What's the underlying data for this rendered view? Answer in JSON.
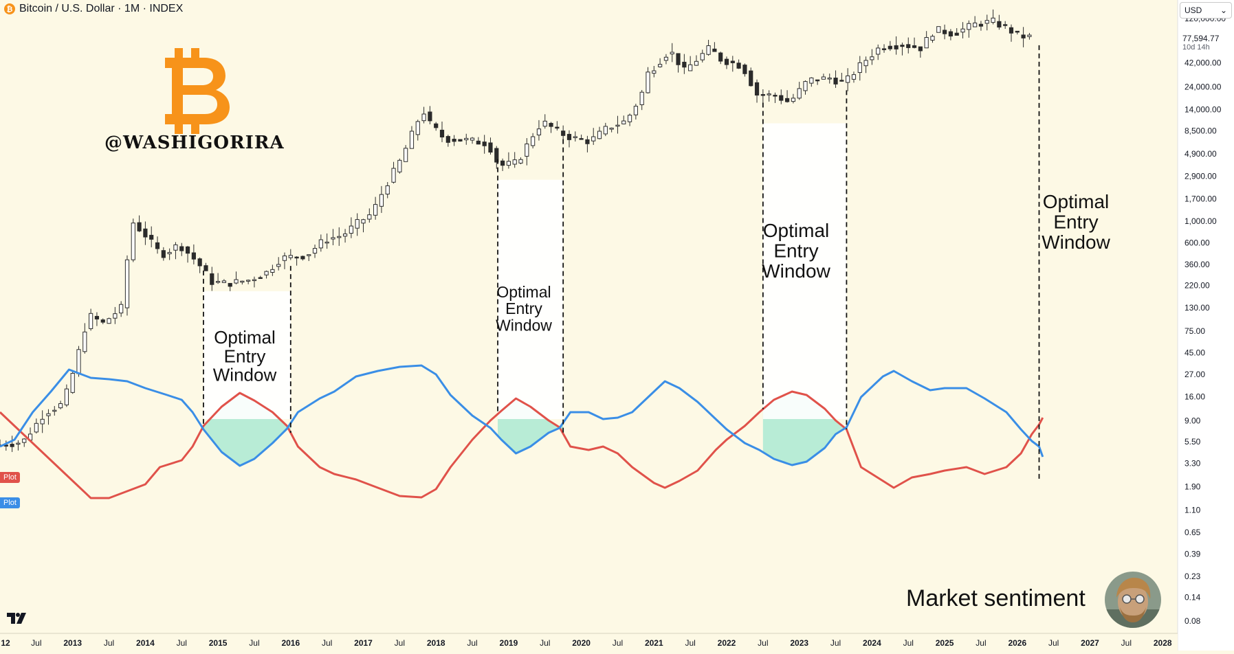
{
  "header": {
    "symbol_icon": "bitcoin-icon",
    "title": "Bitcoin / U.S. Dollar · 1M · INDEX"
  },
  "branding": {
    "handle": "@WASHIGORIRA",
    "logo": "bitcoin-symbol-logo",
    "footer_text": "Market sentiment",
    "avatar": "author-avatar",
    "platform_logo": "tradingview-logo"
  },
  "price_scale": {
    "currency": "USD",
    "last_price": "77,594.77",
    "countdown": "10d 14h"
  },
  "colors": {
    "background": "#fdf9e5",
    "candle_up": "#ffffff",
    "candle_down": "#2b2b2b",
    "red_line": "#e0524a",
    "blue_line": "#3a8ee6",
    "fill": "#b8ecd6",
    "btc_orange": "#f7931a"
  },
  "chart_data": {
    "type": "candlestick",
    "y_scale": "log",
    "y_ticks": [
      "120,000.00",
      "42,000.00",
      "24,000.00",
      "14,000.00",
      "8,500.00",
      "4,900.00",
      "2,900.00",
      "1,700.00",
      "1,000.00",
      "600.00",
      "360.00",
      "220.00",
      "130.00",
      "75.00",
      "45.00",
      "27.00",
      "16.00",
      "9.00",
      "5.50",
      "3.30",
      "1.90",
      "1.10",
      "0.65",
      "0.39",
      "0.23",
      "0.14",
      "0.08"
    ],
    "y_tick_values": [
      120000,
      42000,
      24000,
      14000,
      8500,
      4900,
      2900,
      1700,
      1000,
      600,
      360,
      220,
      130,
      75,
      45,
      27,
      16,
      9,
      5.5,
      3.3,
      1.9,
      1.1,
      0.65,
      0.39,
      0.23,
      0.14,
      0.08
    ],
    "x_ticks": [
      {
        "label": "12",
        "t": 2012.0
      },
      {
        "label": "Jul",
        "t": 2012.5
      },
      {
        "label": "2013",
        "t": 2013.0
      },
      {
        "label": "Jul",
        "t": 2013.5
      },
      {
        "label": "2014",
        "t": 2014.0
      },
      {
        "label": "Jul",
        "t": 2014.5
      },
      {
        "label": "2015",
        "t": 2015.0
      },
      {
        "label": "Jul",
        "t": 2015.5
      },
      {
        "label": "2016",
        "t": 2016.0
      },
      {
        "label": "Jul",
        "t": 2016.5
      },
      {
        "label": "2017",
        "t": 2017.0
      },
      {
        "label": "Jul",
        "t": 2017.5
      },
      {
        "label": "2018",
        "t": 2018.0
      },
      {
        "label": "Jul",
        "t": 2018.5
      },
      {
        "label": "2019",
        "t": 2019.0
      },
      {
        "label": "Jul",
        "t": 2019.5
      },
      {
        "label": "2020",
        "t": 2020.0
      },
      {
        "label": "Jul",
        "t": 2020.5
      },
      {
        "label": "2021",
        "t": 2021.0
      },
      {
        "label": "Jul",
        "t": 2021.5
      },
      {
        "label": "2022",
        "t": 2022.0
      },
      {
        "label": "Jul",
        "t": 2022.5
      },
      {
        "label": "2023",
        "t": 2023.0
      },
      {
        "label": "Jul",
        "t": 2023.5
      },
      {
        "label": "2024",
        "t": 2024.0
      },
      {
        "label": "Jul",
        "t": 2024.5
      },
      {
        "label": "2025",
        "t": 2025.0
      },
      {
        "label": "Jul",
        "t": 2025.5
      },
      {
        "label": "2026",
        "t": 2026.0
      },
      {
        "label": "Jul",
        "t": 2026.5
      },
      {
        "label": "2027",
        "t": 2027.0
      },
      {
        "label": "Jul",
        "t": 2027.5
      },
      {
        "label": "2028",
        "t": 2028.0
      }
    ],
    "price_anchors": [
      [
        2012.0,
        5
      ],
      [
        2012.4,
        5.5
      ],
      [
        2012.7,
        11
      ],
      [
        2012.95,
        13.5
      ],
      [
        2013.1,
        30
      ],
      [
        2013.3,
        110
      ],
      [
        2013.5,
        90
      ],
      [
        2013.75,
        130
      ],
      [
        2013.9,
        1000
      ],
      [
        2014.1,
        700
      ],
      [
        2014.3,
        450
      ],
      [
        2014.55,
        580
      ],
      [
        2014.8,
        380
      ],
      [
        2015.0,
        240
      ],
      [
        2015.2,
        230
      ],
      [
        2015.5,
        250
      ],
      [
        2015.75,
        300
      ],
      [
        2015.95,
        420
      ],
      [
        2016.3,
        450
      ],
      [
        2016.55,
        650
      ],
      [
        2016.8,
        720
      ],
      [
        2017.0,
        960
      ],
      [
        2017.2,
        1200
      ],
      [
        2017.4,
        2400
      ],
      [
        2017.6,
        4300
      ],
      [
        2017.9,
        14000
      ],
      [
        2018.0,
        10000
      ],
      [
        2018.2,
        7000
      ],
      [
        2018.5,
        6800
      ],
      [
        2018.8,
        6300
      ],
      [
        2018.95,
        3700
      ],
      [
        2019.2,
        4000
      ],
      [
        2019.45,
        8500
      ],
      [
        2019.55,
        10500
      ],
      [
        2019.8,
        8000
      ],
      [
        2019.95,
        7200
      ],
      [
        2020.2,
        6600
      ],
      [
        2020.45,
        9200
      ],
      [
        2020.7,
        10700
      ],
      [
        2020.9,
        19000
      ],
      [
        2021.0,
        33000
      ],
      [
        2021.3,
        57000
      ],
      [
        2021.5,
        35000
      ],
      [
        2021.85,
        60000
      ],
      [
        2022.0,
        46000
      ],
      [
        2022.3,
        39000
      ],
      [
        2022.5,
        20000
      ],
      [
        2022.75,
        19500
      ],
      [
        2022.95,
        16500
      ],
      [
        2023.2,
        28000
      ],
      [
        2023.5,
        29500
      ],
      [
        2023.7,
        26000
      ],
      [
        2023.95,
        42000
      ],
      [
        2024.2,
        62000
      ],
      [
        2024.5,
        65000
      ],
      [
        2024.75,
        60000
      ],
      [
        2024.95,
        93000
      ],
      [
        2025.2,
        84000
      ],
      [
        2025.5,
        105000
      ],
      [
        2025.75,
        112000
      ],
      [
        2025.95,
        94000
      ],
      [
        2026.1,
        80000
      ],
      [
        2026.2,
        77594.77
      ]
    ],
    "optimal_entry_windows": [
      {
        "start": 2014.8,
        "end": 2016.0,
        "label": "Optimal\nEntry\nWindow"
      },
      {
        "start": 2018.85,
        "end": 2019.75,
        "label": "Optimal\nEntry\nWindow"
      },
      {
        "start": 2022.5,
        "end": 2023.65,
        "label": "Optimal\nEntry\nWindow"
      },
      {
        "start": 2026.3,
        "end": null,
        "label": "Optimal\nEntry\nWindow"
      }
    ],
    "indicator": {
      "series": [
        {
          "name": "Plot",
          "color": "#e0524a",
          "points": [
            [
              2012.0,
              600
            ],
            [
              2012.2,
              620
            ],
            [
              2012.6,
              660
            ],
            [
              2012.9,
              690
            ],
            [
              2013.25,
              725
            ],
            [
              2013.5,
              725
            ],
            [
              2013.75,
              715
            ],
            [
              2014.0,
              705
            ],
            [
              2014.2,
              680
            ],
            [
              2014.5,
              670
            ],
            [
              2014.65,
              650
            ],
            [
              2014.8,
              620
            ],
            [
              2015.05,
              592
            ],
            [
              2015.3,
              572
            ],
            [
              2015.5,
              583
            ],
            [
              2015.75,
              600
            ],
            [
              2015.95,
              620
            ],
            [
              2016.1,
              650
            ],
            [
              2016.4,
              680
            ],
            [
              2016.6,
              690
            ],
            [
              2016.9,
              698
            ],
            [
              2017.2,
              710
            ],
            [
              2017.5,
              722
            ],
            [
              2017.8,
              724
            ],
            [
              2018.0,
              712
            ],
            [
              2018.2,
              680
            ],
            [
              2018.5,
              640
            ],
            [
              2018.75,
              612
            ],
            [
              2018.9,
              598
            ],
            [
              2019.1,
              580
            ],
            [
              2019.3,
              592
            ],
            [
              2019.55,
              612
            ],
            [
              2019.7,
              622
            ],
            [
              2019.85,
              650
            ],
            [
              2020.1,
              655
            ],
            [
              2020.3,
              650
            ],
            [
              2020.5,
              660
            ],
            [
              2020.7,
              680
            ],
            [
              2021.0,
              703
            ],
            [
              2021.15,
              710
            ],
            [
              2021.35,
              700
            ],
            [
              2021.6,
              685
            ],
            [
              2021.85,
              655
            ],
            [
              2022.0,
              640
            ],
            [
              2022.25,
              620
            ],
            [
              2022.45,
              600
            ],
            [
              2022.65,
              582
            ],
            [
              2022.9,
              570
            ],
            [
              2023.1,
              575
            ],
            [
              2023.35,
              595
            ],
            [
              2023.5,
              612
            ],
            [
              2023.65,
              625
            ],
            [
              2023.85,
              680
            ],
            [
              2024.15,
              700
            ],
            [
              2024.3,
              710
            ],
            [
              2024.55,
              695
            ],
            [
              2024.8,
              690
            ],
            [
              2025.0,
              685
            ],
            [
              2025.3,
              680
            ],
            [
              2025.55,
              690
            ],
            [
              2025.85,
              680
            ],
            [
              2026.05,
              660
            ],
            [
              2026.2,
              632
            ],
            [
              2026.3,
              618
            ],
            [
              2026.35,
              608
            ]
          ]
        },
        {
          "name": "Plot",
          "color": "#3a8ee6",
          "points": [
            [
              2012.0,
              650
            ],
            [
              2012.2,
              640
            ],
            [
              2012.45,
              600
            ],
            [
              2012.7,
              570
            ],
            [
              2012.95,
              538
            ],
            [
              2013.25,
              550
            ],
            [
              2013.5,
              552
            ],
            [
              2013.75,
              555
            ],
            [
              2014.0,
              565
            ],
            [
              2014.3,
              575
            ],
            [
              2014.5,
              582
            ],
            [
              2014.65,
              600
            ],
            [
              2014.8,
              625
            ],
            [
              2015.05,
              658
            ],
            [
              2015.3,
              678
            ],
            [
              2015.5,
              668
            ],
            [
              2015.75,
              645
            ],
            [
              2015.95,
              624
            ],
            [
              2016.1,
              600
            ],
            [
              2016.4,
              580
            ],
            [
              2016.6,
              570
            ],
            [
              2016.9,
              548
            ],
            [
              2017.2,
              540
            ],
            [
              2017.5,
              534
            ],
            [
              2017.8,
              532
            ],
            [
              2018.0,
              545
            ],
            [
              2018.2,
              575
            ],
            [
              2018.5,
              605
            ],
            [
              2018.75,
              623
            ],
            [
              2018.9,
              640
            ],
            [
              2019.1,
              660
            ],
            [
              2019.3,
              650
            ],
            [
              2019.55,
              630
            ],
            [
              2019.7,
              623
            ],
            [
              2019.85,
              600
            ],
            [
              2020.1,
              600
            ],
            [
              2020.3,
              610
            ],
            [
              2020.5,
              608
            ],
            [
              2020.7,
              600
            ],
            [
              2021.0,
              570
            ],
            [
              2021.15,
              555
            ],
            [
              2021.35,
              565
            ],
            [
              2021.6,
              585
            ],
            [
              2021.85,
              610
            ],
            [
              2022.0,
              625
            ],
            [
              2022.25,
              645
            ],
            [
              2022.45,
              655
            ],
            [
              2022.65,
              668
            ],
            [
              2022.9,
              677
            ],
            [
              2023.1,
              672
            ],
            [
              2023.35,
              652
            ],
            [
              2023.5,
              632
            ],
            [
              2023.65,
              622
            ],
            [
              2023.85,
              578
            ],
            [
              2024.15,
              548
            ],
            [
              2024.3,
              540
            ],
            [
              2024.55,
              555
            ],
            [
              2024.8,
              568
            ],
            [
              2025.0,
              565
            ],
            [
              2025.3,
              565
            ],
            [
              2025.55,
              580
            ],
            [
              2025.85,
              600
            ],
            [
              2026.05,
              625
            ],
            [
              2026.2,
              642
            ],
            [
              2026.3,
              650
            ],
            [
              2026.35,
              665
            ]
          ]
        }
      ],
      "y_range": [
        520,
        740
      ]
    }
  }
}
